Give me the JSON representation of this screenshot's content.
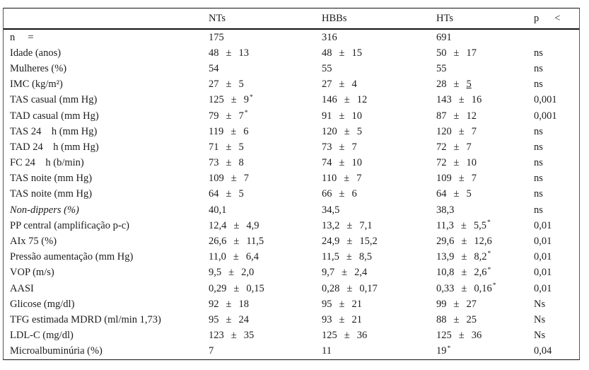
{
  "table": {
    "plus_minus": "±",
    "header": {
      "corner": "",
      "nts": "NTs",
      "hbbs": "HBBs",
      "hts": "HTs",
      "p": "p",
      "p_op": "<"
    },
    "rows": [
      {
        "label": "n     =",
        "cells": [
          {
            "mean": "175"
          },
          {
            "mean": "316"
          },
          {
            "mean": "691"
          }
        ],
        "p": ""
      },
      {
        "label": "Idade (anos)",
        "cells": [
          {
            "mean": "48",
            "sd": "13"
          },
          {
            "mean": "48",
            "sd": "15"
          },
          {
            "mean": "50",
            "sd": "17"
          }
        ],
        "p": "ns"
      },
      {
        "label": "Mulheres (%)",
        "cells": [
          {
            "mean": "54"
          },
          {
            "mean": "55"
          },
          {
            "mean": "55"
          }
        ],
        "p": "ns"
      },
      {
        "label": "IMC (kg/m²)",
        "cells": [
          {
            "mean": "27",
            "sd": "5"
          },
          {
            "mean": "27",
            "sd": "4"
          },
          {
            "mean": "28",
            "sd": "5",
            "underline": true
          }
        ],
        "p": "ns"
      },
      {
        "label": "TAS casual (mm Hg)",
        "cells": [
          {
            "mean": "125",
            "sd": "9",
            "sup": "*"
          },
          {
            "mean": "146",
            "sd": "12"
          },
          {
            "mean": "143",
            "sd": "16"
          }
        ],
        "p": "0,001"
      },
      {
        "label": "TAD casual (mm Hg)",
        "cells": [
          {
            "mean": "79",
            "sd": "7",
            "sup": "*"
          },
          {
            "mean": "91",
            "sd": "10"
          },
          {
            "mean": "87",
            "sd": "12"
          }
        ],
        "p": "0,001"
      },
      {
        "label": "TAS 24    h (mm Hg)",
        "cells": [
          {
            "mean": "119",
            "sd": "6"
          },
          {
            "mean": "120",
            "sd": "5"
          },
          {
            "mean": "120",
            "sd": "7"
          }
        ],
        "p": "ns"
      },
      {
        "label": "TAD 24    h (mm Hg)",
        "cells": [
          {
            "mean": "71",
            "sd": "5"
          },
          {
            "mean": "73",
            "sd": "7"
          },
          {
            "mean": "72",
            "sd": "7"
          }
        ],
        "p": "ns"
      },
      {
        "label": "FC 24    h (b/min)",
        "cells": [
          {
            "mean": "73",
            "sd": "8"
          },
          {
            "mean": "74",
            "sd": "10"
          },
          {
            "mean": "72",
            "sd": "10"
          }
        ],
        "p": "ns"
      },
      {
        "label": "TAS noite (mm Hg)",
        "cells": [
          {
            "mean": "109",
            "sd": "7"
          },
          {
            "mean": "110",
            "sd": "7"
          },
          {
            "mean": "109",
            "sd": "7"
          }
        ],
        "p": "ns"
      },
      {
        "label": "TAS noite (mm Hg)",
        "cells": [
          {
            "mean": "64",
            "sd": "5"
          },
          {
            "mean": "66",
            "sd": "6"
          },
          {
            "mean": "64",
            "sd": "5"
          }
        ],
        "p": "ns"
      },
      {
        "label": "Non-dippers (%)",
        "italic": true,
        "cells": [
          {
            "mean": "40,1"
          },
          {
            "mean": "34,5"
          },
          {
            "mean": "38,3"
          }
        ],
        "p": "ns"
      },
      {
        "label": "PP central (amplificação p-c)",
        "cells": [
          {
            "mean": "12,4",
            "sd": "4,9"
          },
          {
            "mean": "13,2",
            "sd": "7,1"
          },
          {
            "mean": "11,3",
            "sd": "5,5",
            "sup": "*"
          }
        ],
        "p": "0,01"
      },
      {
        "label": "AIx 75 (%)",
        "cells": [
          {
            "mean": "26,6",
            "sd": "11,5"
          },
          {
            "mean": "24,9",
            "sd": "15,2"
          },
          {
            "mean": "29,6",
            "sd": "12,6"
          }
        ],
        "p": "0,01"
      },
      {
        "label": "Pressão aumentação (mm Hg)",
        "cells": [
          {
            "mean": "11,0",
            "sd": "6,4"
          },
          {
            "mean": "11,5",
            "sd": "8,5"
          },
          {
            "mean": "13,9",
            "sd": "8,2",
            "sup": "*"
          }
        ],
        "p": "0,01"
      },
      {
        "label": "VOP (m/s)",
        "cells": [
          {
            "mean": "9,5",
            "sd": "2,0"
          },
          {
            "mean": "9,7",
            "sd": "2,4"
          },
          {
            "mean": "10,8",
            "sd": "2,6",
            "sup": "*"
          }
        ],
        "p": "0,01"
      },
      {
        "label": "AASI",
        "cells": [
          {
            "mean": "0,29",
            "sd": "0,15"
          },
          {
            "mean": "0,28",
            "sd": "0,17"
          },
          {
            "mean": "0,33",
            "sd": "0,16",
            "sup": "*"
          }
        ],
        "p": "0,01"
      },
      {
        "label": "Glicose (mg/dl)",
        "cells": [
          {
            "mean": "92",
            "sd": "18"
          },
          {
            "mean": "95",
            "sd": "21"
          },
          {
            "mean": "99",
            "sd": "27"
          }
        ],
        "p": "Ns"
      },
      {
        "label": "TFG estimada MDRD (ml/min 1,73)",
        "cells": [
          {
            "mean": "95",
            "sd": "24"
          },
          {
            "mean": "93",
            "sd": "21"
          },
          {
            "mean": "88",
            "sd": "25"
          }
        ],
        "p": "Ns"
      },
      {
        "label": "LDL-C (mg/dl)",
        "cells": [
          {
            "mean": "123",
            "sd": "35"
          },
          {
            "mean": "125",
            "sd": "36"
          },
          {
            "mean": "125",
            "sd": "36"
          }
        ],
        "p": "Ns"
      },
      {
        "label": "Microalbuminúria (%)",
        "cells": [
          {
            "mean": "7"
          },
          {
            "mean": "11"
          },
          {
            "mean": "19",
            "sup": "*"
          }
        ],
        "p": "0,04"
      }
    ]
  }
}
